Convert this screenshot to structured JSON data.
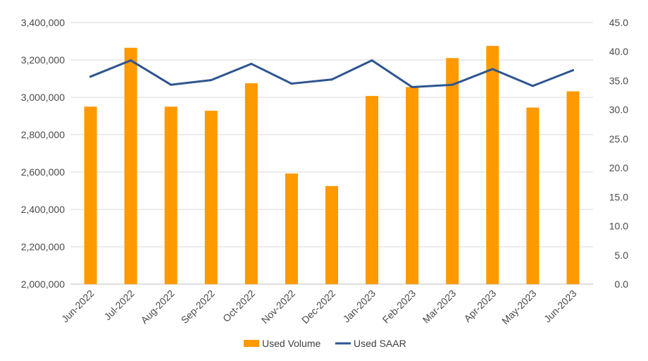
{
  "chart_data": {
    "type": "bar",
    "categories": [
      "Jun-2022",
      "Jul-2022",
      "Aug-2022",
      "Sep-2022",
      "Oct-2022",
      "Nov-2022",
      "Dec-2022",
      "Jan-2023",
      "Feb-2023",
      "Mar-2023",
      "Apr-2023",
      "May-2023",
      "Jun-2023"
    ],
    "series": [
      {
        "name": "Used Volume",
        "type": "bar",
        "axis": "left",
        "color": "#FF9900",
        "values": [
          2950000,
          3265000,
          2950000,
          2928000,
          3075000,
          2592000,
          2525000,
          3007000,
          3055000,
          3210000,
          3275000,
          2945000,
          3032000
        ]
      },
      {
        "name": "Used SAAR",
        "type": "line",
        "axis": "right",
        "color": "#2E5591",
        "values": [
          35.7,
          38.5,
          34.3,
          35.1,
          37.9,
          34.5,
          35.2,
          38.5,
          33.9,
          34.3,
          37.0,
          34.1,
          36.8
        ]
      }
    ],
    "y_left": {
      "min": 2000000,
      "max": 3400000,
      "step": 200000,
      "tick_labels": [
        "2,000,000",
        "2,200,000",
        "2,400,000",
        "2,600,000",
        "2,800,000",
        "3,000,000",
        "3,200,000",
        "3,400,000"
      ]
    },
    "y_right": {
      "min": 0,
      "max": 45,
      "step": 5,
      "tick_labels": [
        "0.0",
        "5.0",
        "10.0",
        "15.0",
        "20.0",
        "25.0",
        "30.0",
        "35.0",
        "40.0",
        "45.0"
      ]
    },
    "grid": true,
    "legend": {
      "position": "bottom",
      "entries": [
        "Used Volume",
        "Used SAAR"
      ]
    },
    "title": "",
    "xlabel": "",
    "ylabel": ""
  }
}
